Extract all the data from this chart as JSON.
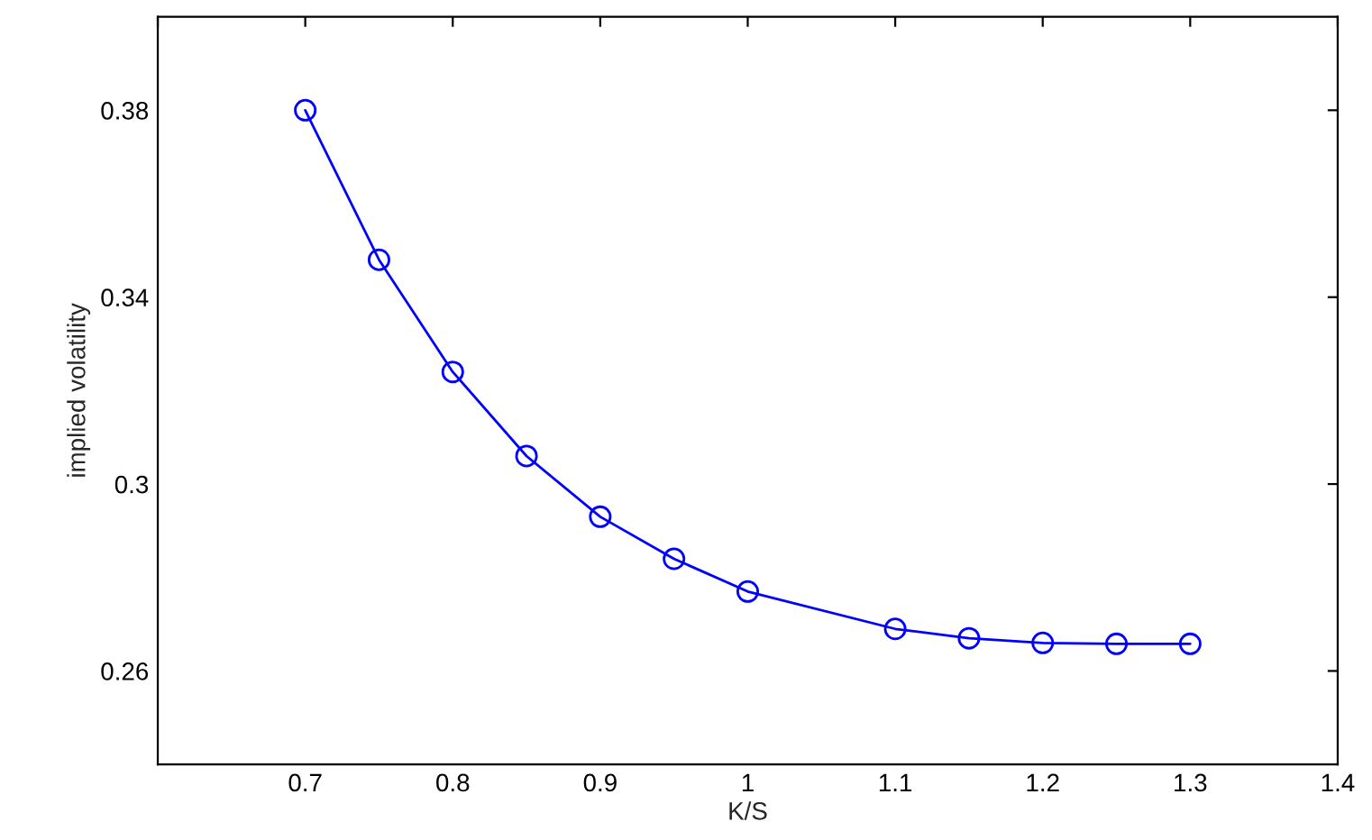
{
  "chart_data": {
    "type": "line",
    "xlabel": "K/S",
    "ylabel": "implied volatility",
    "x": [
      0.7,
      0.75,
      0.8,
      0.85,
      0.9,
      0.95,
      1.0,
      1.1,
      1.15,
      1.2,
      1.25,
      1.3
    ],
    "series": [
      {
        "color": "#0000ff",
        "values": [
          0.38,
          0.348,
          0.324,
          0.306,
          0.293,
          0.284,
          0.277,
          0.269,
          0.267,
          0.266,
          0.2658,
          0.2658
        ]
      }
    ],
    "xlim": [
      0.6,
      1.4
    ],
    "xticks": [
      {
        "value": 0.6,
        "label": null
      },
      0.7,
      0.8,
      0.9,
      1,
      1.1,
      1.2,
      1.3,
      1.4
    ],
    "ylim": [
      0.24,
      0.4
    ],
    "yticks": [
      0.26,
      0.3,
      0.34,
      0.38
    ],
    "marker": "circle",
    "line_style": "solid",
    "grid": false,
    "legend": false
  }
}
